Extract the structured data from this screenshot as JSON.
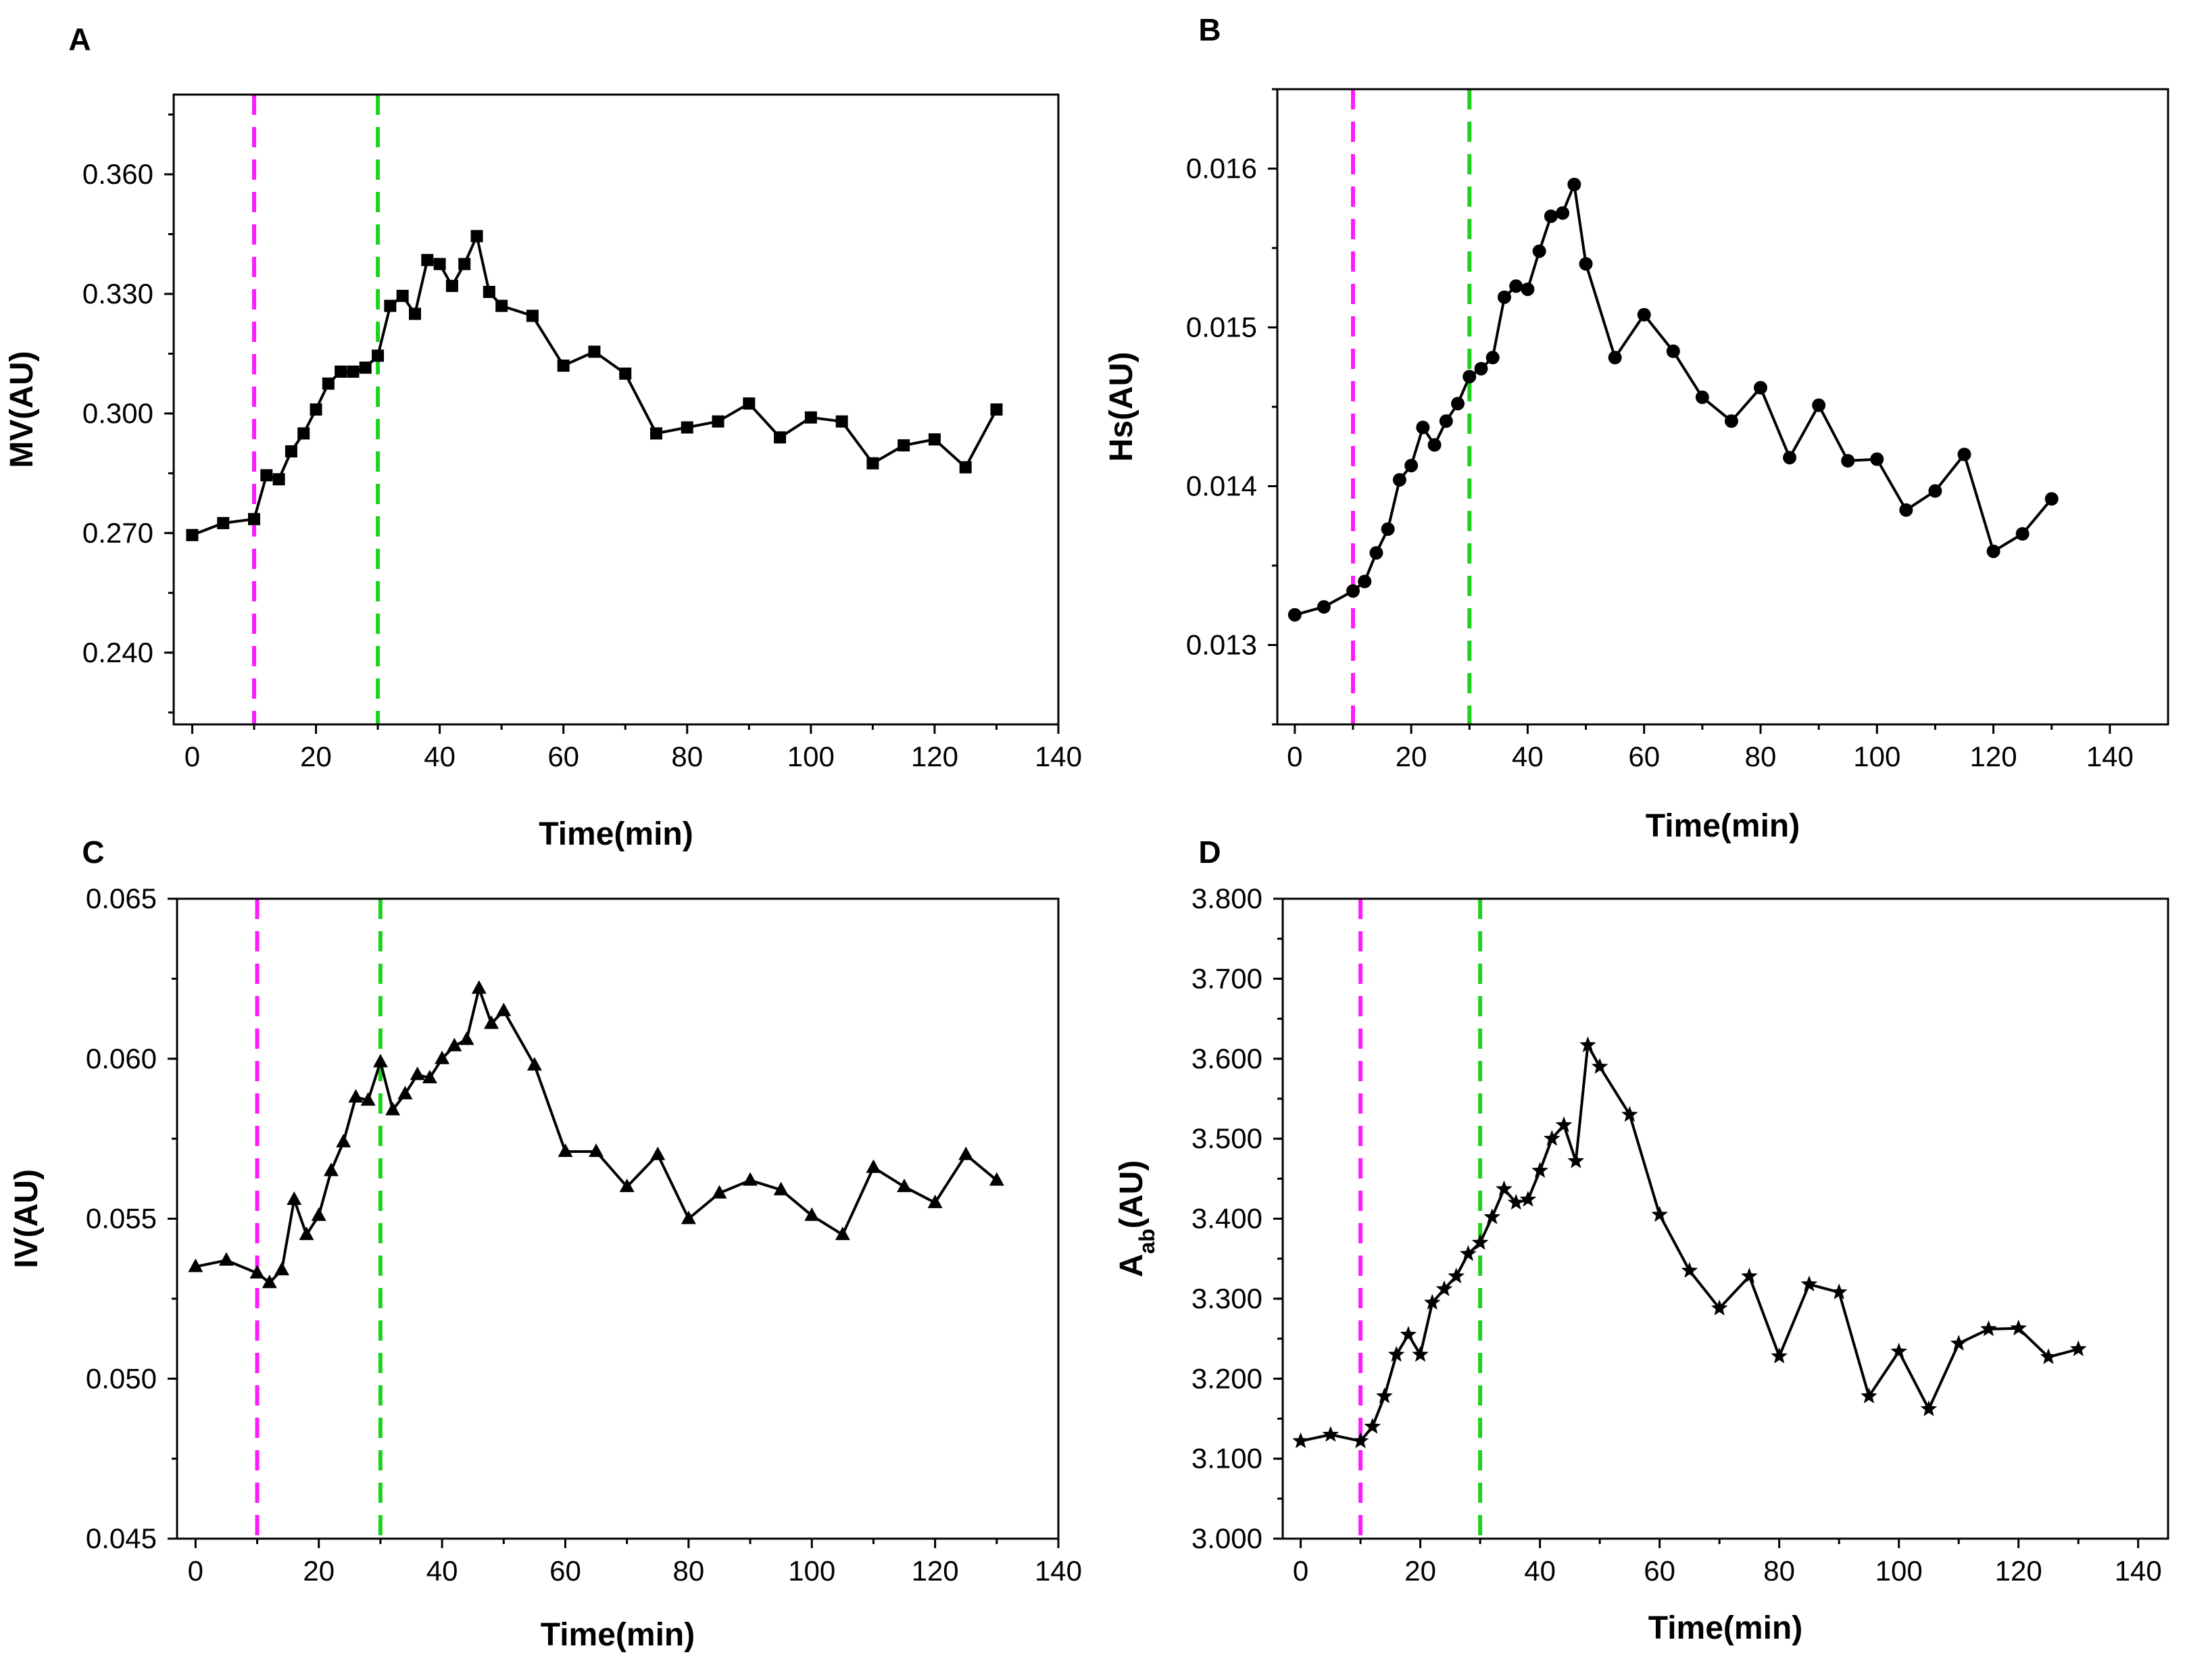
{
  "colors": {
    "line": "#000000",
    "magenta": "#ff1aff",
    "green": "#1fd11f"
  },
  "chart_data": [
    {
      "panel": "A",
      "type": "line",
      "marker": "square",
      "xlabel": "Time(min)",
      "ylabel": "MV(AU)",
      "ylabel_sub": "",
      "xlim": [
        -3,
        140
      ],
      "ylim": [
        0.222,
        0.38
      ],
      "xticks": [
        0,
        20,
        40,
        60,
        80,
        100,
        120,
        140
      ],
      "xtick_labels": [
        "0",
        "20",
        "40",
        "60",
        "80",
        "100",
        "120",
        "140"
      ],
      "yticks": [
        0.24,
        0.27,
        0.3,
        0.33,
        0.36
      ],
      "ytick_labels": [
        "0.240",
        "0.270",
        "0.300",
        "0.330",
        "0.360"
      ],
      "vlines": [
        {
          "x": 10,
          "color": "magenta"
        },
        {
          "x": 30,
          "color": "green"
        }
      ],
      "x": [
        0,
        5,
        10,
        12,
        14,
        16,
        18,
        20,
        22,
        24,
        26,
        28,
        30,
        32,
        34,
        36,
        38,
        40,
        42,
        44,
        46,
        48,
        50,
        55,
        60,
        65,
        70,
        75,
        80,
        85,
        90,
        95,
        100,
        105,
        110,
        115,
        120,
        125,
        130
      ],
      "values": [
        0.2695,
        0.2725,
        0.2735,
        0.2845,
        0.2835,
        0.2905,
        0.295,
        0.301,
        0.3075,
        0.3105,
        0.3105,
        0.3115,
        0.3145,
        0.327,
        0.3295,
        0.325,
        0.3385,
        0.3375,
        0.332,
        0.3375,
        0.3445,
        0.3305,
        0.327,
        0.3245,
        0.312,
        0.3155,
        0.31,
        0.295,
        0.2965,
        0.298,
        0.3025,
        0.294,
        0.299,
        0.298,
        0.2875,
        0.292,
        0.2935,
        0.2865,
        0.301
      ]
    },
    {
      "panel": "B",
      "type": "line",
      "marker": "circle",
      "xlabel": "Time(min)",
      "ylabel": "Hs(AU)",
      "ylabel_sub": "",
      "xlim": [
        -3,
        150
      ],
      "ylim": [
        0.0125,
        0.0165
      ],
      "xticks": [
        0,
        20,
        40,
        60,
        80,
        100,
        120,
        140
      ],
      "xtick_labels": [
        "0",
        "20",
        "40",
        "60",
        "80",
        "100",
        "120",
        "140"
      ],
      "yticks": [
        0.013,
        0.014,
        0.015,
        0.016
      ],
      "ytick_labels": [
        "0.013",
        "0.014",
        "0.015",
        "0.016"
      ],
      "vlines": [
        {
          "x": 10,
          "color": "magenta"
        },
        {
          "x": 30,
          "color": "green"
        }
      ],
      "x": [
        0,
        5,
        10,
        12,
        14,
        16,
        18,
        20,
        22,
        24,
        26,
        28,
        30,
        32,
        34,
        36,
        38,
        40,
        42,
        44,
        46,
        48,
        50,
        55,
        60,
        65,
        70,
        75,
        80,
        85,
        90,
        95,
        100,
        105,
        110,
        115,
        120,
        125,
        130
      ],
      "values": [
        0.01319,
        0.01324,
        0.01334,
        0.0134,
        0.01358,
        0.01373,
        0.01404,
        0.01413,
        0.01437,
        0.01426,
        0.01441,
        0.01452,
        0.01469,
        0.01474,
        0.01481,
        0.01519,
        0.01526,
        0.01524,
        0.01548,
        0.0157,
        0.01572,
        0.0159,
        0.0154,
        0.01481,
        0.01508,
        0.01485,
        0.01456,
        0.01441,
        0.01462,
        0.01418,
        0.01451,
        0.01416,
        0.01417,
        0.01385,
        0.01397,
        0.0142,
        0.01359,
        0.0137,
        0.01392
      ]
    },
    {
      "panel": "C",
      "type": "line",
      "marker": "triangle",
      "xlabel": "Time(min)",
      "ylabel": "IV(AU)",
      "ylabel_sub": "",
      "xlim": [
        -3,
        140
      ],
      "ylim": [
        0.045,
        0.065
      ],
      "xticks": [
        0,
        20,
        40,
        60,
        80,
        100,
        120,
        140
      ],
      "xtick_labels": [
        "0",
        "20",
        "40",
        "60",
        "80",
        "100",
        "120",
        "140"
      ],
      "yticks": [
        0.045,
        0.05,
        0.055,
        0.06,
        0.065
      ],
      "ytick_labels": [
        "0.045",
        "0.050",
        "0.055",
        "0.060",
        "0.065"
      ],
      "vlines": [
        {
          "x": 10,
          "color": "magenta"
        },
        {
          "x": 30,
          "color": "green"
        }
      ],
      "x": [
        0,
        5,
        10,
        12,
        14,
        16,
        18,
        20,
        22,
        24,
        26,
        28,
        30,
        32,
        34,
        36,
        38,
        40,
        42,
        44,
        46,
        48,
        50,
        55,
        60,
        65,
        70,
        75,
        80,
        85,
        90,
        95,
        100,
        105,
        110,
        115,
        120,
        125,
        130
      ],
      "values": [
        0.0535,
        0.0537,
        0.0533,
        0.053,
        0.0534,
        0.0556,
        0.0545,
        0.0551,
        0.0565,
        0.0574,
        0.0588,
        0.0587,
        0.0599,
        0.0584,
        0.0589,
        0.0595,
        0.0594,
        0.06,
        0.0604,
        0.0606,
        0.0622,
        0.0611,
        0.0615,
        0.0598,
        0.0571,
        0.0571,
        0.056,
        0.057,
        0.055,
        0.0558,
        0.0562,
        0.0559,
        0.0551,
        0.0545,
        0.0566,
        0.056,
        0.0555,
        0.057,
        0.0562
      ]
    },
    {
      "panel": "D",
      "type": "line",
      "marker": "star",
      "xlabel": "Time(min)",
      "ylabel": "A",
      "ylabel_sub": "ab",
      "ylabel_suffix": "(AU)",
      "xlim": [
        -3,
        145
      ],
      "ylim": [
        3.0,
        3.8
      ],
      "xticks": [
        0,
        20,
        40,
        60,
        80,
        100,
        120,
        140
      ],
      "xtick_labels": [
        "0",
        "20",
        "40",
        "60",
        "80",
        "100",
        "120",
        "140"
      ],
      "yticks": [
        3.0,
        3.1,
        3.2,
        3.3,
        3.4,
        3.5,
        3.6,
        3.7,
        3.8
      ],
      "ytick_labels": [
        "3.000",
        "3.100",
        "3.200",
        "3.300",
        "3.400",
        "3.500",
        "3.600",
        "3.700",
        "3.800"
      ],
      "vlines": [
        {
          "x": 10,
          "color": "magenta"
        },
        {
          "x": 30,
          "color": "green"
        }
      ],
      "x": [
        0,
        5,
        10,
        12,
        14,
        16,
        18,
        20,
        22,
        24,
        26,
        28,
        30,
        32,
        34,
        36,
        38,
        40,
        42,
        44,
        46,
        48,
        50,
        55,
        60,
        65,
        70,
        75,
        80,
        85,
        90,
        95,
        100,
        105,
        110,
        115,
        120,
        125,
        130
      ],
      "values": [
        3.122,
        3.13,
        3.122,
        3.14,
        3.178,
        3.23,
        3.255,
        3.23,
        3.295,
        3.312,
        3.328,
        3.356,
        3.37,
        3.402,
        3.437,
        3.42,
        3.424,
        3.46,
        3.5,
        3.517,
        3.472,
        3.617,
        3.59,
        3.53,
        3.405,
        3.335,
        3.288,
        3.328,
        3.228,
        3.318,
        3.308,
        3.178,
        3.234,
        3.162,
        3.244,
        3.262,
        3.263,
        3.227,
        3.237
      ]
    }
  ]
}
